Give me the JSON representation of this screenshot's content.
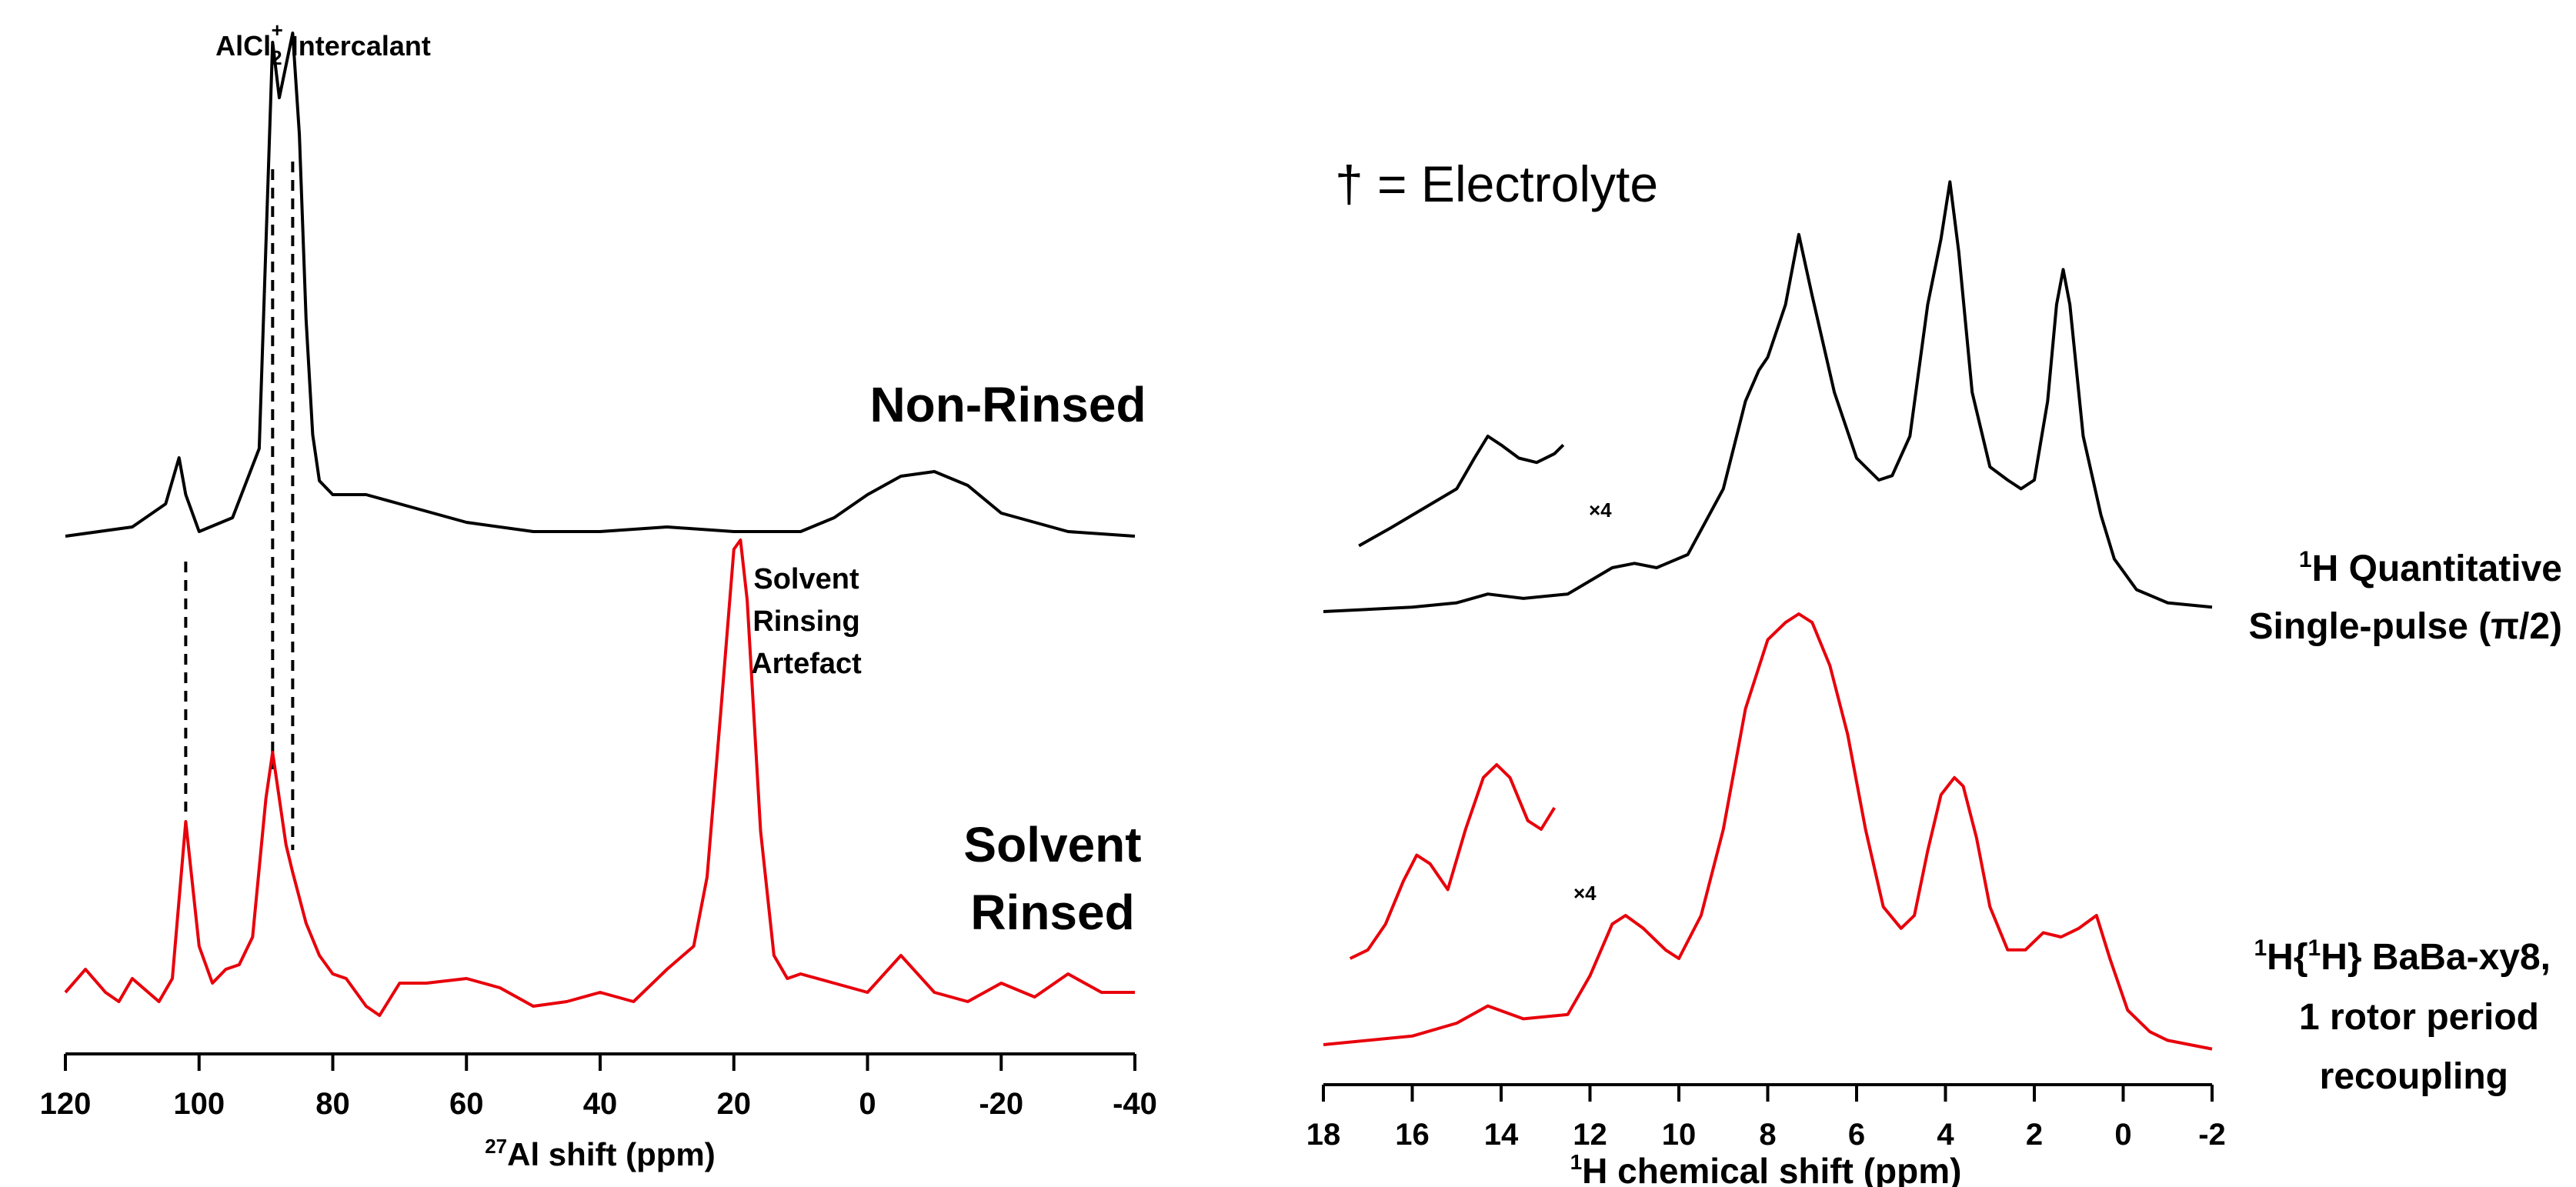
{
  "chart_data": [
    {
      "type": "line",
      "panel": "left",
      "xlabel_sup": "27",
      "xlabel": "Al shift (ppm)",
      "xlim": [
        120,
        -40
      ],
      "xticks": [
        120,
        100,
        80,
        60,
        40,
        20,
        0,
        -20,
        -40
      ],
      "xtick_labels": [
        "120",
        "100",
        "80",
        "60",
        "40",
        "20",
        "0",
        "-20",
        "-40"
      ],
      "series": [
        {
          "name": "Non-Rinsed",
          "color": "#000000",
          "x": [
            120,
            110,
            105,
            103,
            102,
            100,
            95,
            91,
            89,
            88,
            87,
            86,
            85,
            84,
            83,
            82,
            80,
            75,
            70,
            60,
            50,
            40,
            30,
            20,
            10,
            5,
            0,
            -5,
            -10,
            -15,
            -20,
            -30,
            -40
          ],
          "y": [
            0.03,
            0.05,
            0.1,
            0.2,
            0.12,
            0.04,
            0.07,
            0.22,
            1.1,
            0.98,
            1.05,
            1.12,
            0.9,
            0.5,
            0.25,
            0.15,
            0.12,
            0.12,
            0.1,
            0.06,
            0.04,
            0.04,
            0.05,
            0.04,
            0.04,
            0.07,
            0.12,
            0.16,
            0.17,
            0.14,
            0.08,
            0.04,
            0.03
          ]
        },
        {
          "name": "Solvent Rinsed",
          "color": "#e8000b",
          "x": [
            120,
            117,
            114,
            112,
            110,
            106,
            104,
            102,
            100,
            98,
            96,
            94,
            92,
            90,
            89,
            88,
            87,
            86,
            84,
            82,
            80,
            78,
            75,
            73,
            70,
            66,
            60,
            55,
            50,
            45,
            40,
            35,
            30,
            26,
            24,
            22,
            20,
            19,
            18,
            16,
            14,
            12,
            10,
            5,
            0,
            -5,
            -10,
            -15,
            -20,
            -25,
            -30,
            -35,
            -40
          ],
          "y": [
            0.0,
            0.05,
            0.0,
            -0.02,
            0.03,
            -0.02,
            0.03,
            0.37,
            0.1,
            0.02,
            0.05,
            0.06,
            0.12,
            0.42,
            0.52,
            0.42,
            0.32,
            0.26,
            0.15,
            0.08,
            0.04,
            0.03,
            -0.03,
            -0.05,
            0.02,
            0.02,
            0.03,
            0.01,
            -0.03,
            -0.02,
            0.0,
            -0.02,
            0.05,
            0.1,
            0.25,
            0.6,
            0.96,
            0.98,
            0.85,
            0.35,
            0.08,
            0.03,
            0.04,
            0.02,
            0.0,
            0.08,
            0.0,
            -0.02,
            0.02,
            -0.01,
            0.04,
            0.0,
            0.0
          ]
        }
      ],
      "annotations": {
        "top_label_main": "AlCl",
        "top_label_sub": "2",
        "top_label_sup": "+",
        "top_label_rest": " Intercalant",
        "nonrinsed_label": "Non-Rinsed",
        "rinsed_label_1": "Solvent",
        "rinsed_label_2": "Rinsed",
        "artefact_1": "Solvent",
        "artefact_2": "Rinsing",
        "artefact_3": "Artefact"
      },
      "dashed_lines_at": [
        102,
        89,
        86
      ]
    },
    {
      "type": "line",
      "panel": "right",
      "xlabel_sup": "1",
      "xlabel": "H chemical shift (ppm)",
      "xlim": [
        18,
        -2
      ],
      "xticks": [
        18,
        16,
        14,
        12,
        10,
        8,
        6,
        4,
        2,
        0,
        -2
      ],
      "xtick_labels": [
        "18",
        "16",
        "14",
        "12",
        "10",
        "8",
        "6",
        "4",
        "2",
        "0",
        "-2"
      ],
      "series": [
        {
          "name": "¹H Quantitative Single-pulse (π/2)",
          "color": "#000000",
          "x": [
            18,
            16,
            15,
            14.3,
            13.5,
            12.5,
            11.5,
            11,
            10.5,
            9.8,
            9,
            8.5,
            8.2,
            8,
            7.6,
            7.3,
            7,
            6.5,
            6,
            5.5,
            5.2,
            4.8,
            4.4,
            4.1,
            3.9,
            3.7,
            3.4,
            3,
            2.6,
            2.3,
            2,
            1.7,
            1.5,
            1.35,
            1.2,
            0.9,
            0.5,
            0.2,
            -0.3,
            -1,
            -2
          ],
          "y": [
            0.0,
            0.01,
            0.02,
            0.04,
            0.03,
            0.04,
            0.1,
            0.11,
            0.1,
            0.13,
            0.28,
            0.48,
            0.55,
            0.58,
            0.7,
            0.86,
            0.72,
            0.5,
            0.35,
            0.3,
            0.31,
            0.4,
            0.7,
            0.85,
            0.98,
            0.82,
            0.5,
            0.33,
            0.3,
            0.28,
            0.3,
            0.48,
            0.7,
            0.78,
            0.7,
            0.4,
            0.22,
            0.12,
            0.05,
            0.02,
            0.01
          ]
        },
        {
          "name": "¹H Quantitative inset ×4",
          "color": "#000000",
          "x": [
            17.2,
            16.5,
            16,
            15.5,
            15,
            14.6,
            14.3,
            14,
            13.6,
            13.2,
            12.8,
            12.6
          ],
          "y": [
            0.15,
            0.19,
            0.22,
            0.25,
            0.28,
            0.35,
            0.4,
            0.38,
            0.35,
            0.34,
            0.36,
            0.38
          ]
        },
        {
          "name": "¹H{¹H} BaBa-xy8, 1 rotor period recoupling",
          "color": "#e8000b",
          "x": [
            18,
            16,
            15,
            14.3,
            13.5,
            12.5,
            12,
            11.5,
            11.2,
            10.8,
            10.3,
            10,
            9.5,
            9,
            8.5,
            8,
            7.6,
            7.3,
            7,
            6.6,
            6.2,
            5.8,
            5.4,
            5,
            4.7,
            4.4,
            4.1,
            3.8,
            3.6,
            3.3,
            3,
            2.6,
            2.2,
            1.8,
            1.4,
            1,
            0.6,
            0.3,
            -0.1,
            -0.6,
            -1,
            -1.5,
            -2
          ],
          "y": [
            0.0,
            0.02,
            0.05,
            0.09,
            0.06,
            0.07,
            0.16,
            0.28,
            0.3,
            0.27,
            0.22,
            0.2,
            0.3,
            0.5,
            0.78,
            0.94,
            0.98,
            1.0,
            0.98,
            0.88,
            0.72,
            0.5,
            0.32,
            0.27,
            0.3,
            0.45,
            0.58,
            0.62,
            0.6,
            0.48,
            0.32,
            0.22,
            0.22,
            0.26,
            0.25,
            0.27,
            0.3,
            0.2,
            0.08,
            0.03,
            0.01,
            0.0,
            -0.01
          ]
        },
        {
          "name": "BaBa inset ×4",
          "color": "#e8000b",
          "x": [
            17.4,
            17,
            16.6,
            16.2,
            15.9,
            15.6,
            15.2,
            14.8,
            14.4,
            14.1,
            13.8,
            13.4,
            13.1,
            12.8
          ],
          "y": [
            0.2,
            0.22,
            0.28,
            0.38,
            0.44,
            0.42,
            0.36,
            0.5,
            0.62,
            0.65,
            0.62,
            0.52,
            0.5,
            0.55
          ]
        }
      ],
      "annotations": {
        "electrolyte_legend": "† = Electrolyte",
        "x4_top": "×4",
        "x4_bottom": "×4",
        "label_top_1_sup": "1",
        "label_top_1": "H Quantitative",
        "label_top_2": "Single-pulse (π/2)",
        "label_bottom_1_sup1": "1",
        "label_bottom_1_a": "H{",
        "label_bottom_1_sup2": "1",
        "label_bottom_1_b": "H} BaBa-xy8,",
        "label_bottom_2": "1 rotor period",
        "label_bottom_3": "recoupling"
      }
    }
  ]
}
